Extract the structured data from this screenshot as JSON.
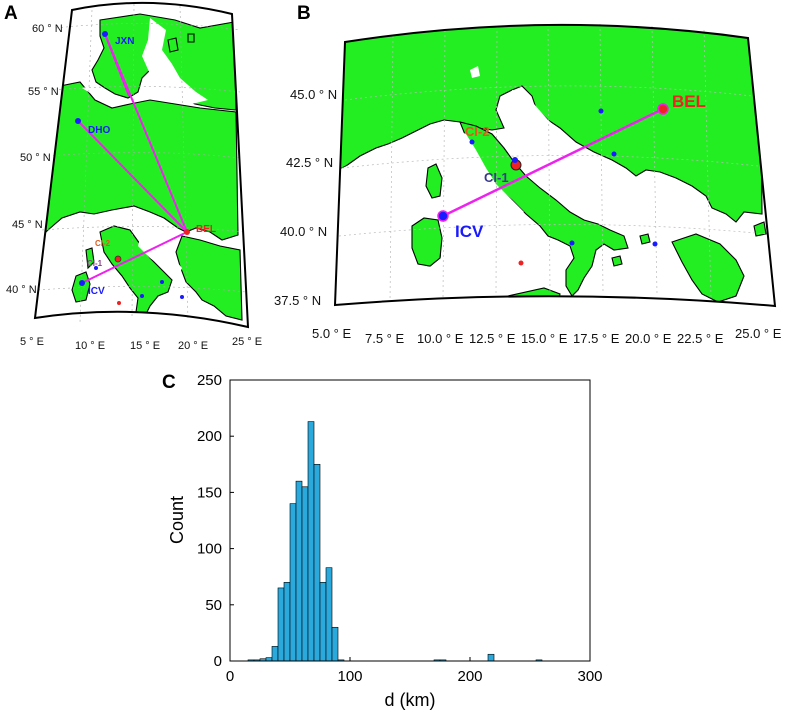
{
  "panels": {
    "a": {
      "letter": "A",
      "lat_labels": [
        "60 ° N",
        "55 ° N",
        "50 ° N",
        "45 ° N",
        "40 ° N"
      ],
      "lon_labels": [
        "5 ° E",
        "10 ° E",
        "15 ° E",
        "20 ° E",
        "25 ° E"
      ],
      "stations": [
        "JXN",
        "DHO",
        "BEL",
        "ICV",
        "CI-2",
        "CI-1"
      ]
    },
    "b": {
      "letter": "B",
      "lat_labels": [
        "45.0 ° N",
        "42.5 ° N",
        "40.0 ° N",
        "37.5 ° N"
      ],
      "lon_labels": [
        "5.0 ° E",
        "7.5 ° E",
        "10.0 ° E",
        "12.5 ° E",
        "15.0 ° E",
        "17.5 ° E",
        "20.0 ° E",
        "22.5 ° E",
        "25.0 ° E"
      ],
      "stations": [
        "BEL",
        "ICV",
        "CI-2",
        "CI-1"
      ]
    },
    "c": {
      "letter": "C"
    }
  },
  "colors": {
    "land": "#22ee22",
    "sea": "#ffffff",
    "path": "#ee22ee",
    "station_blue": "#1a1aff",
    "station_red": "#ee2222",
    "ci_label": "#e05a1a",
    "ci1_label": "#3a3a8a",
    "bar": "#2aa9dc"
  },
  "chart_data": {
    "type": "bar",
    "title": "",
    "xlabel": "d (km)",
    "ylabel": "Count",
    "xlim": [
      0,
      300
    ],
    "ylim": [
      0,
      250
    ],
    "xticks": [
      0,
      100,
      200,
      300
    ],
    "yticks": [
      0,
      50,
      100,
      150,
      200,
      250
    ],
    "bin_width": 5,
    "bin_starts": [
      15,
      20,
      25,
      30,
      35,
      40,
      45,
      50,
      55,
      60,
      65,
      70,
      75,
      80,
      85,
      90,
      170,
      175,
      215,
      255
    ],
    "values": [
      1,
      1,
      2,
      3,
      13,
      65,
      70,
      140,
      160,
      155,
      213,
      175,
      70,
      83,
      30,
      1,
      1,
      1,
      6,
      1
    ],
    "grid": false
  }
}
